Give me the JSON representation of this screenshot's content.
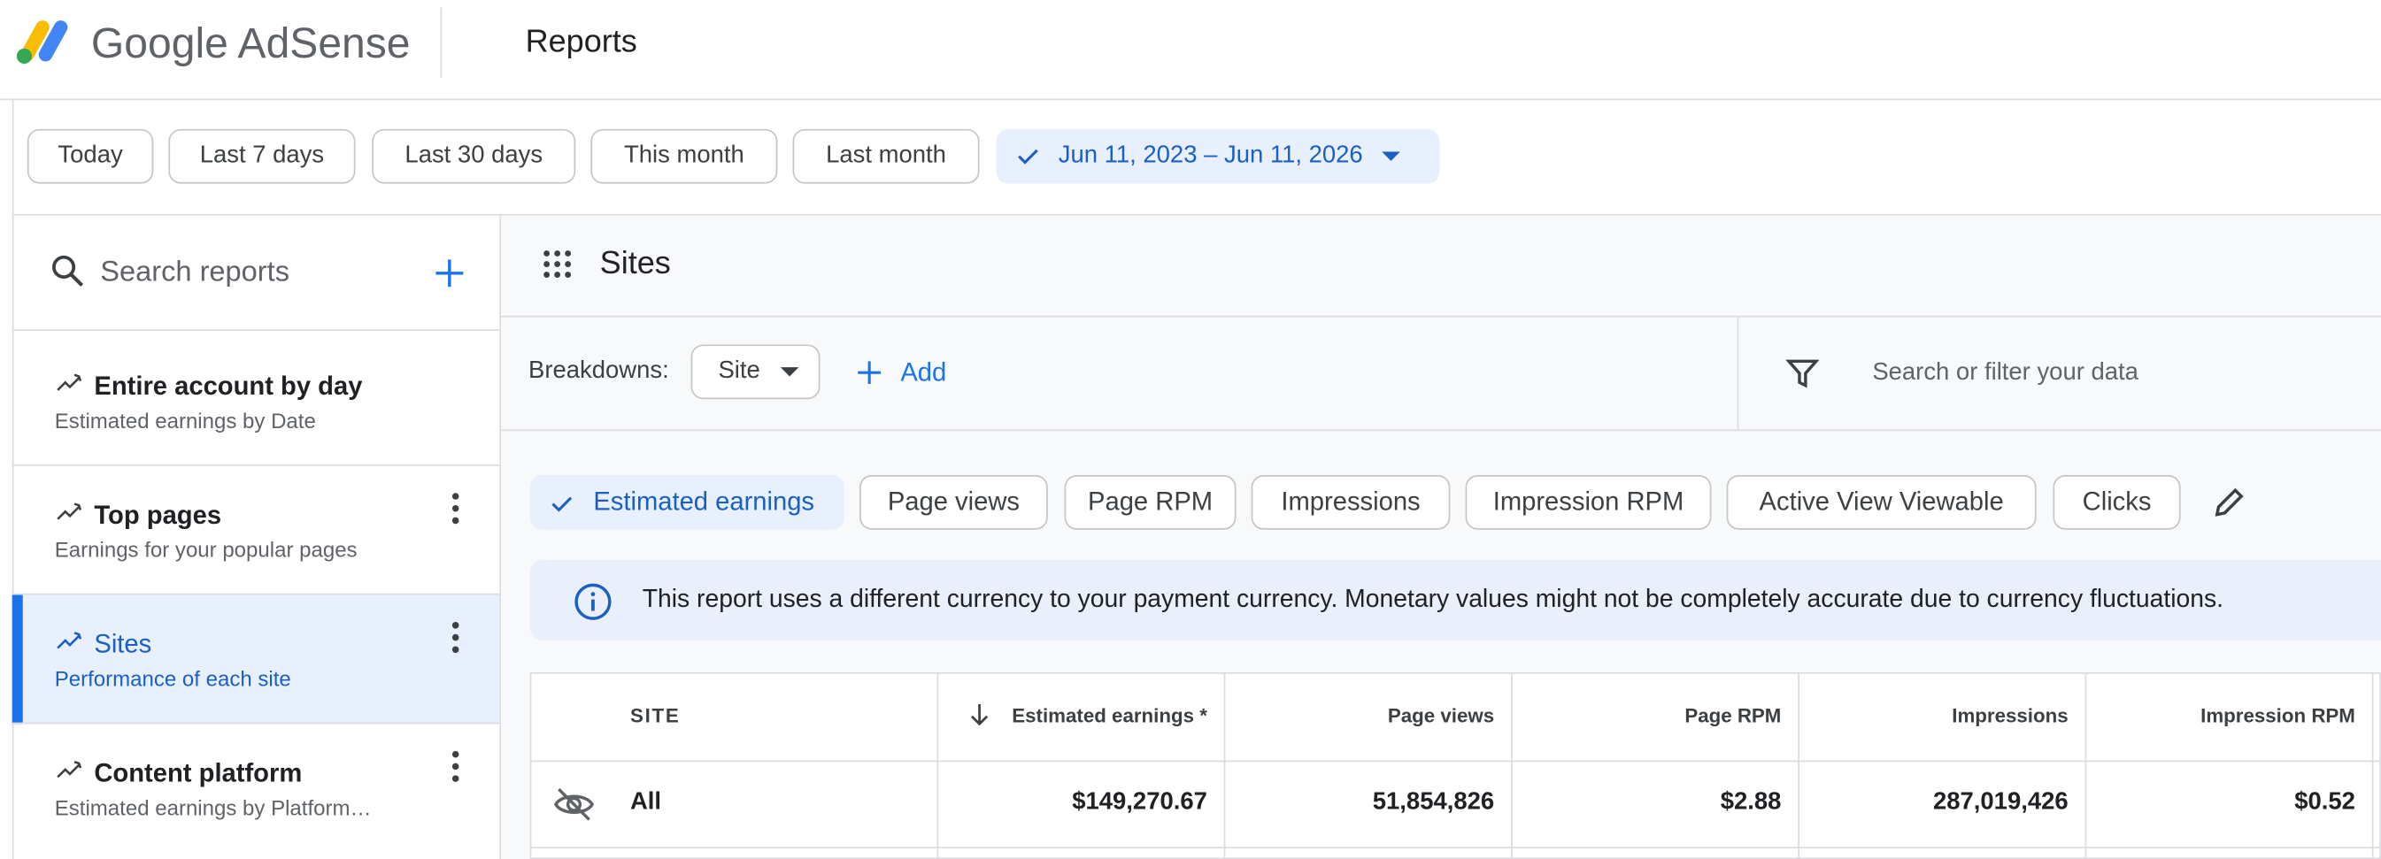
{
  "header": {
    "logo_text": "Google AdSense",
    "page_title": "Reports"
  },
  "date_filters": {
    "options": [
      "Today",
      "Last 7 days",
      "Last 30 days",
      "This month",
      "Last month"
    ],
    "selected_range": "Jun 11, 2023 – Jun 11, 2026"
  },
  "sidebar": {
    "search_placeholder": "Search reports",
    "reports": [
      {
        "title": "Entire account by day",
        "subtitle": "Estimated earnings by Date"
      },
      {
        "title": "Top pages",
        "subtitle": "Earnings for your popular pages"
      },
      {
        "title": "Sites",
        "subtitle": "Performance of each site"
      },
      {
        "title": "Content platform",
        "subtitle": "Estimated earnings by Platform…"
      }
    ]
  },
  "report": {
    "title": "Sites",
    "breakdowns_label": "Breakdowns:",
    "breakdown": "Site",
    "add": "Add",
    "filter_placeholder": "Search or filter your data",
    "metrics": [
      "Estimated earnings",
      "Page views",
      "Page RPM",
      "Impressions",
      "Impression RPM",
      "Active View Viewable",
      "Clicks"
    ],
    "notice": "This report uses a different currency to your payment currency. Monetary values might not be completely accurate due to currency fluctuations."
  },
  "table": {
    "columns": [
      "SITE",
      "Estimated earnings *",
      "Page views",
      "Page RPM",
      "Impressions",
      "Impression RPM"
    ],
    "rows": [
      [
        "All",
        "$149,270.67",
        "51,854,826",
        "$2.88",
        "287,019,426",
        "$0.52"
      ]
    ]
  }
}
